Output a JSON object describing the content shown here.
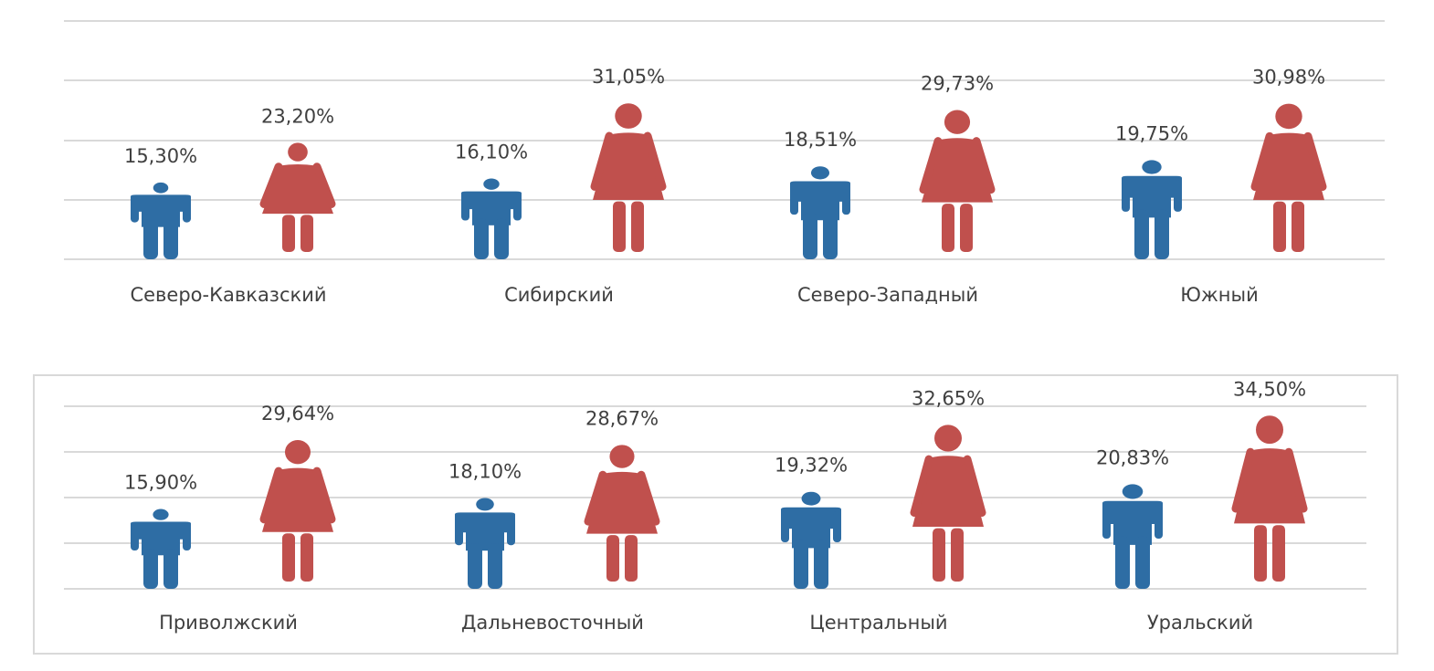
{
  "colors": {
    "male": "#2e6da4",
    "female": "#c0504d",
    "grid": "#d9d9d9",
    "text": "#404040",
    "frame": "#d9d9d9"
  },
  "chart_data": [
    {
      "type": "pictograph",
      "grid": true,
      "bordered": false,
      "categories": [
        "Северо-Кавказский",
        "Сибирский",
        "Северо-Западный",
        "Южный"
      ],
      "series": [
        {
          "key": "male",
          "icon": "male-figure-icon",
          "values": [
            15.3,
            16.1,
            18.51,
            19.75
          ],
          "labels": [
            "15,30%",
            "16,10%",
            "18,51%",
            "19,75%"
          ]
        },
        {
          "key": "female",
          "icon": "female-figure-icon",
          "values": [
            23.2,
            31.05,
            29.73,
            30.98
          ],
          "labels": [
            "23,20%",
            "31,05%",
            "29,73%",
            "30,98%"
          ]
        }
      ]
    },
    {
      "type": "pictograph",
      "grid": true,
      "bordered": true,
      "categories": [
        "Приволжский",
        "Дальневосточный",
        "Центральный",
        "Уральский"
      ],
      "series": [
        {
          "key": "male",
          "icon": "male-figure-icon",
          "values": [
            15.9,
            18.1,
            19.32,
            20.83
          ],
          "labels": [
            "15,90%",
            "18,10%",
            "19,32%",
            "20,83%"
          ]
        },
        {
          "key": "female",
          "icon": "female-figure-icon",
          "values": [
            29.64,
            28.67,
            32.65,
            34.5
          ],
          "labels": [
            "29,64%",
            "28,67%",
            "32,65%",
            "34,50%"
          ]
        }
      ]
    }
  ]
}
